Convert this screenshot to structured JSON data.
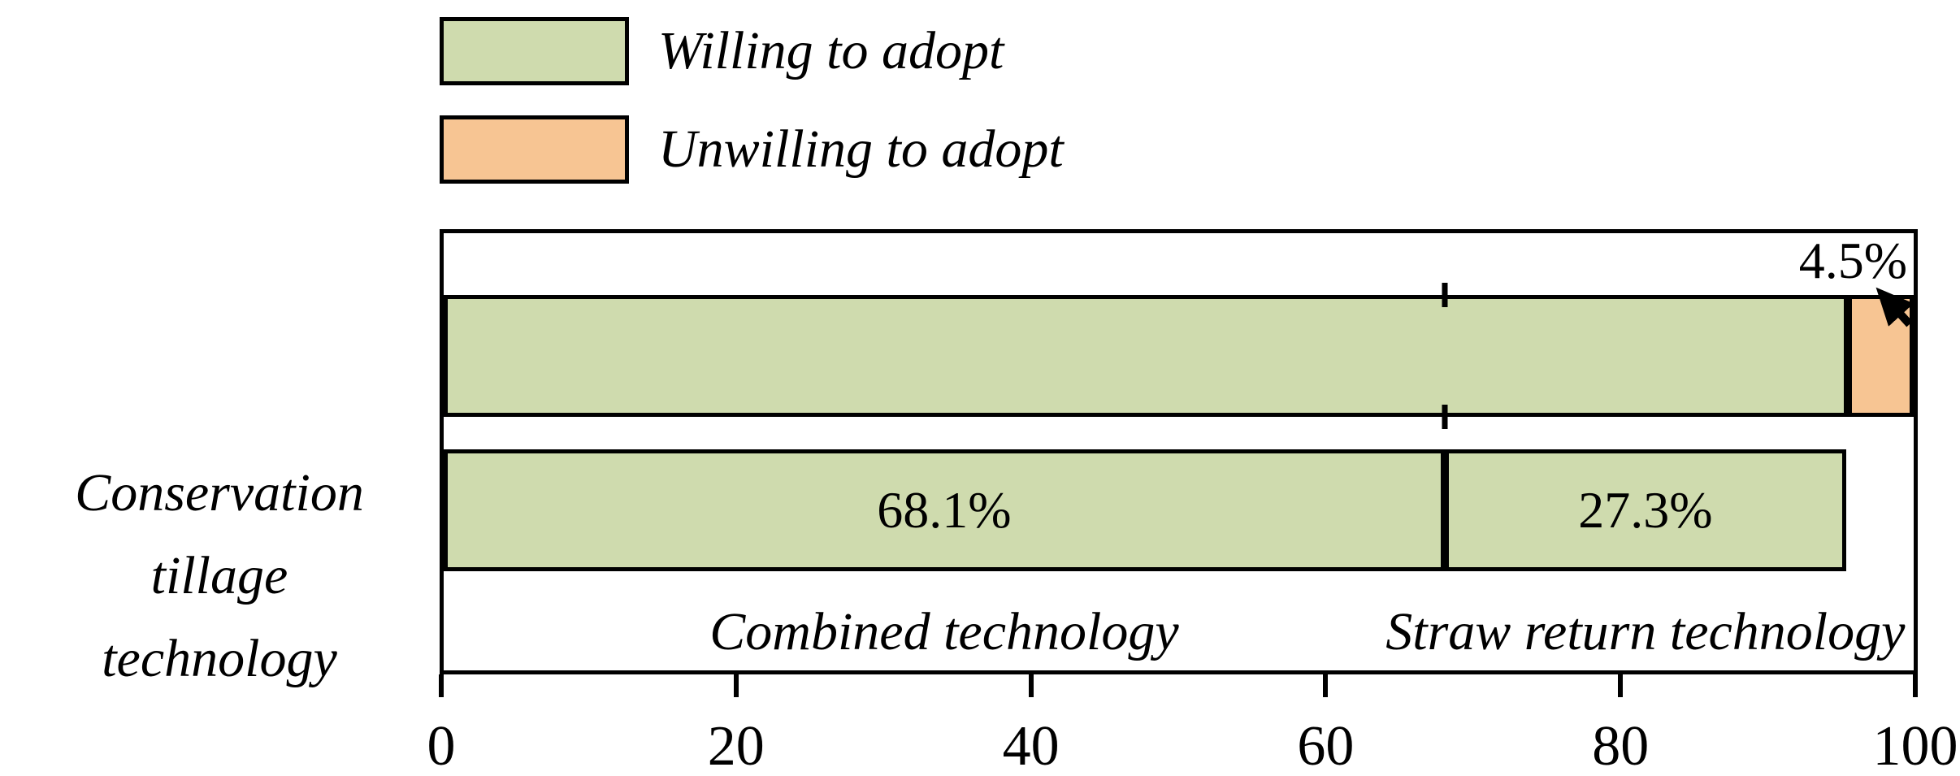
{
  "figure": {
    "background_color": "#ffffff",
    "frame_color": "#000000"
  },
  "legend": {
    "position": "top-left",
    "items": [
      {
        "label": "Willing to adopt"
      },
      {
        "label": "Unwilling to adopt"
      }
    ]
  },
  "chart_data": {
    "type": "bar",
    "orientation": "horizontal-stacked",
    "title": "",
    "category_label": "Conservation tillage technology",
    "category_label_lines": [
      "Conservation tillage",
      "technology"
    ],
    "xlim": [
      0,
      100
    ],
    "x_ticks": [
      0,
      20,
      40,
      60,
      80,
      100
    ],
    "x_tick_labels": [
      "0",
      "20",
      "40",
      "60",
      "80",
      "100"
    ],
    "grid": false,
    "legend_position": "top-left",
    "series": [
      {
        "name": "Willing to adopt",
        "color": "#cfdbae"
      },
      {
        "name": "Unwilling to adopt",
        "color": "#f7c593"
      }
    ],
    "bars": [
      {
        "id": "adoption-willingness",
        "segments": [
          {
            "series": "Willing to adopt",
            "value": 95.5,
            "data_label": ""
          },
          {
            "series": "Unwilling to adopt",
            "value": 4.5,
            "data_label": "4.5%",
            "label_placement": "callout-arrow-above"
          }
        ]
      },
      {
        "id": "technology-split",
        "segments": [
          {
            "series": "Willing to adopt",
            "value": 68.1,
            "data_label": "68.1%",
            "segment_label": "Combined technology"
          },
          {
            "series": "Willing to adopt",
            "value": 27.3,
            "data_label": "27.3%",
            "segment_label": "Straw return technology"
          }
        ]
      }
    ],
    "marker_value": 68.1
  }
}
